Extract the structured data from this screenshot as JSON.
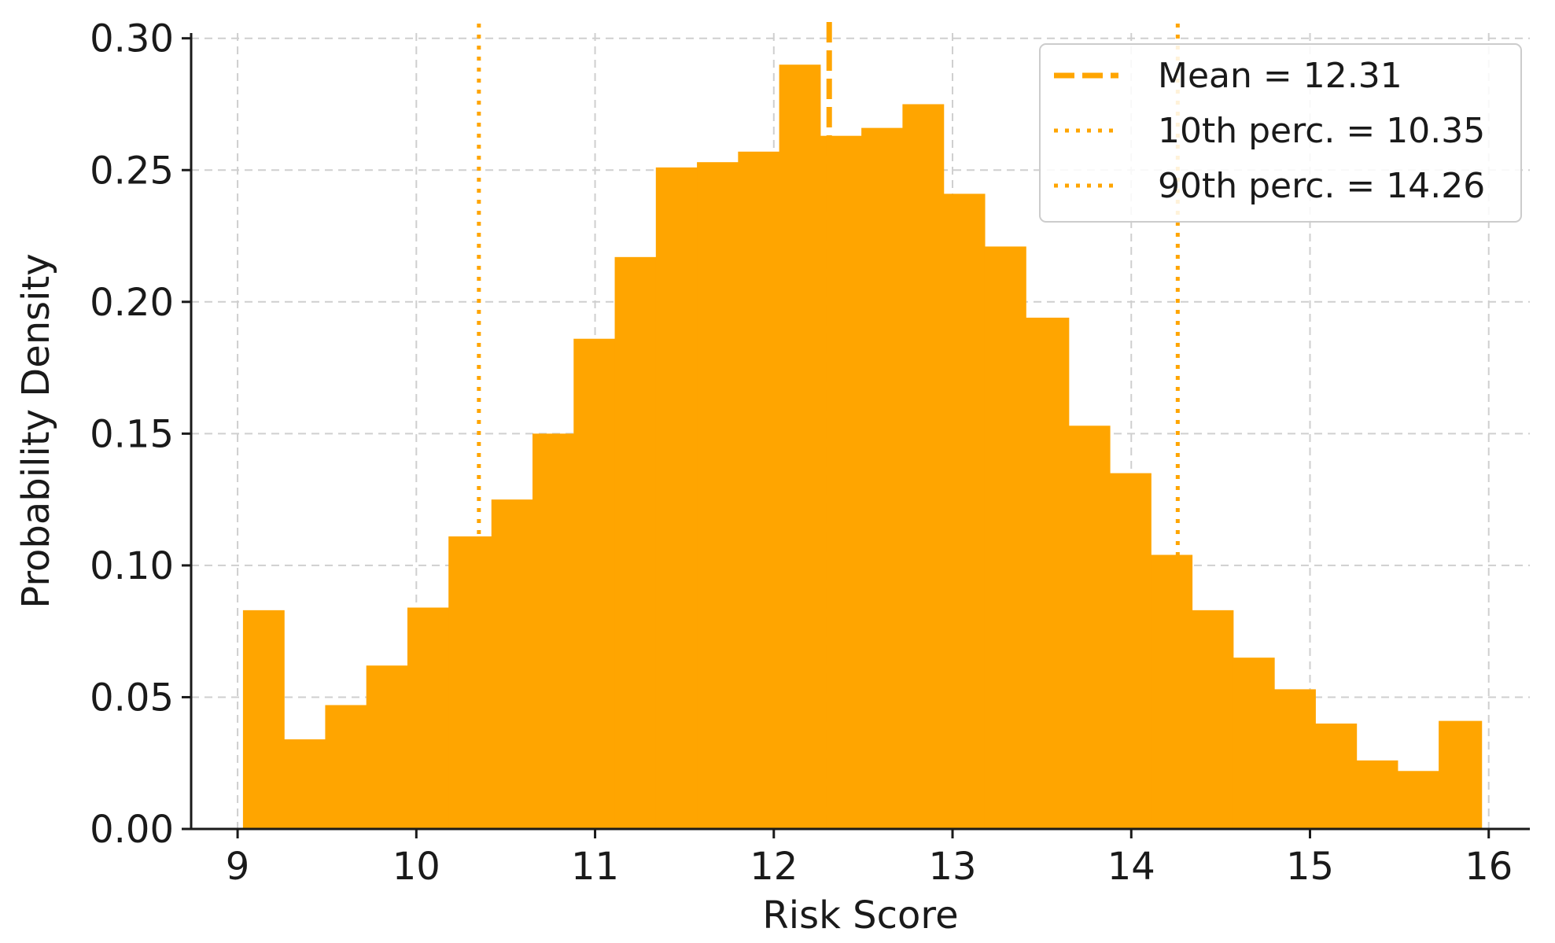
{
  "chart_data": {
    "type": "bar",
    "title": "",
    "xlabel": "Risk Score",
    "ylabel": "Probability Density",
    "xlim": [
      8.74,
      16.23
    ],
    "ylim": [
      0.0,
      0.302
    ],
    "x_ticks": [
      9,
      10,
      11,
      12,
      13,
      14,
      15,
      16
    ],
    "x_tick_labels": [
      "9",
      "10",
      "11",
      "12",
      "13",
      "14",
      "15",
      "16"
    ],
    "y_ticks": [
      0.0,
      0.05,
      0.1,
      0.15,
      0.2,
      0.25,
      0.3
    ],
    "y_tick_labels": [
      "0.00",
      "0.05",
      "0.10",
      "0.15",
      "0.20",
      "0.25",
      "0.30"
    ],
    "grid": true,
    "bar_color": "#FFA500",
    "bins": [
      {
        "x0": 9.03,
        "x1": 9.26,
        "density": 0.083
      },
      {
        "x0": 9.26,
        "x1": 9.49,
        "density": 0.034
      },
      {
        "x0": 9.49,
        "x1": 9.72,
        "density": 0.047
      },
      {
        "x0": 9.72,
        "x1": 9.95,
        "density": 0.062
      },
      {
        "x0": 9.95,
        "x1": 10.18,
        "density": 0.084
      },
      {
        "x0": 10.18,
        "x1": 10.42,
        "density": 0.111
      },
      {
        "x0": 10.42,
        "x1": 10.65,
        "density": 0.125
      },
      {
        "x0": 10.65,
        "x1": 10.88,
        "density": 0.15
      },
      {
        "x0": 10.88,
        "x1": 11.11,
        "density": 0.186
      },
      {
        "x0": 11.11,
        "x1": 11.34,
        "density": 0.217
      },
      {
        "x0": 11.34,
        "x1": 11.57,
        "density": 0.251
      },
      {
        "x0": 11.57,
        "x1": 11.8,
        "density": 0.253
      },
      {
        "x0": 11.8,
        "x1": 12.03,
        "density": 0.257
      },
      {
        "x0": 12.03,
        "x1": 12.26,
        "density": 0.29
      },
      {
        "x0": 12.26,
        "x1": 12.49,
        "density": 0.263
      },
      {
        "x0": 12.49,
        "x1": 12.72,
        "density": 0.266
      },
      {
        "x0": 12.72,
        "x1": 12.95,
        "density": 0.275
      },
      {
        "x0": 12.95,
        "x1": 13.18,
        "density": 0.241
      },
      {
        "x0": 13.18,
        "x1": 13.41,
        "density": 0.221
      },
      {
        "x0": 13.41,
        "x1": 13.65,
        "density": 0.194
      },
      {
        "x0": 13.65,
        "x1": 13.88,
        "density": 0.153
      },
      {
        "x0": 13.88,
        "x1": 14.11,
        "density": 0.135
      },
      {
        "x0": 14.11,
        "x1": 14.34,
        "density": 0.104
      },
      {
        "x0": 14.34,
        "x1": 14.57,
        "density": 0.083
      },
      {
        "x0": 14.57,
        "x1": 14.8,
        "density": 0.065
      },
      {
        "x0": 14.8,
        "x1": 15.03,
        "density": 0.053
      },
      {
        "x0": 15.03,
        "x1": 15.26,
        "density": 0.04
      },
      {
        "x0": 15.26,
        "x1": 15.49,
        "density": 0.026
      },
      {
        "x0": 15.49,
        "x1": 15.72,
        "density": 0.022
      },
      {
        "x0": 15.72,
        "x1": 15.96,
        "density": 0.041
      }
    ],
    "reference_lines": [
      {
        "label": "Mean = 12.31",
        "x": 12.31,
        "style": "dashed",
        "color": "#FFA500"
      },
      {
        "label": "10th perc. = 10.35",
        "x": 10.35,
        "style": "dotted",
        "color": "#FFA500"
      },
      {
        "label": "90th perc. = 14.26",
        "x": 14.26,
        "style": "dotted",
        "color": "#FFA500"
      }
    ],
    "legend_position": "top-right"
  }
}
